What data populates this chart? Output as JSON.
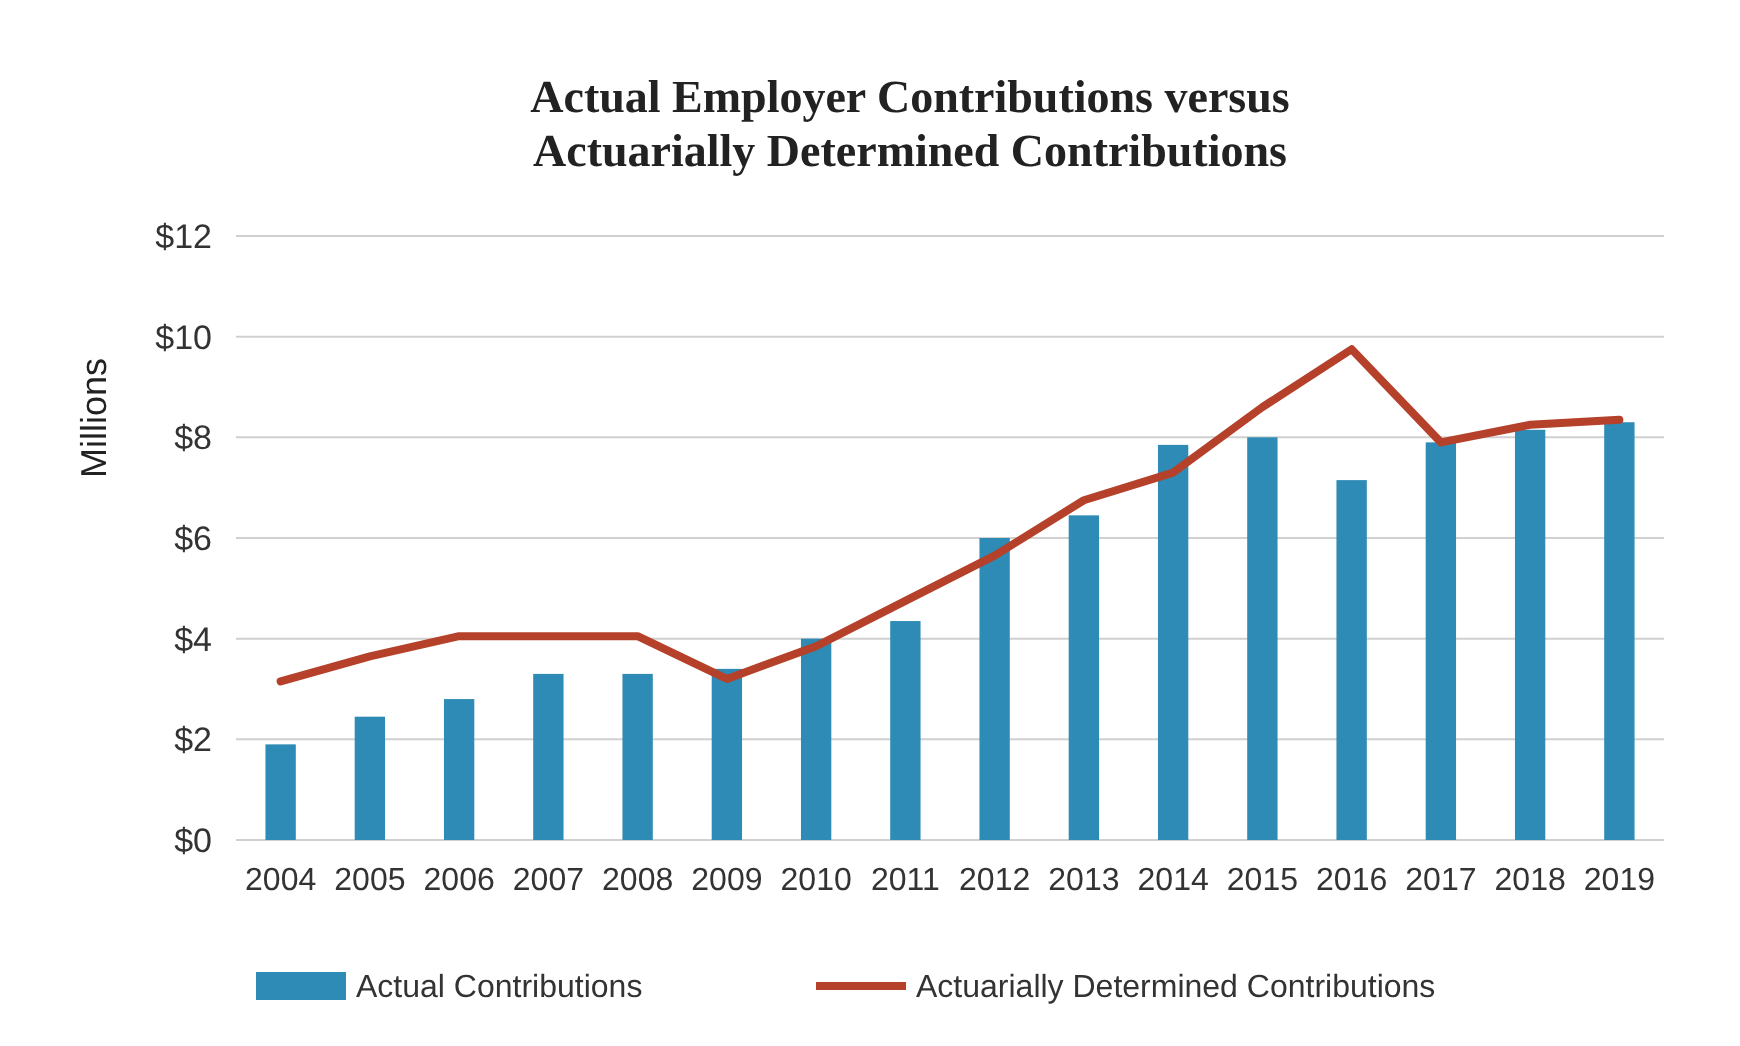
{
  "chart_data": {
    "type": "bar",
    "title": "Actual Employer Contributions versus\nActuarially Determined Contributions",
    "ylabel": "Millions",
    "categories": [
      "2004",
      "2005",
      "2006",
      "2007",
      "2008",
      "2009",
      "2010",
      "2011",
      "2012",
      "2013",
      "2014",
      "2015",
      "2016",
      "2017",
      "2018",
      "2019"
    ],
    "series": [
      {
        "name": "Actual Contributions",
        "color": "#2e8bb5",
        "values": [
          1.9,
          2.45,
          2.8,
          3.3,
          3.3,
          3.4,
          4.0,
          4.35,
          6.0,
          6.45,
          7.85,
          8.0,
          7.15,
          7.9,
          8.15,
          8.3
        ]
      },
      {
        "name": "Actuarially Determined Contributions",
        "type": "line",
        "color": "#b5412a",
        "values": [
          3.15,
          3.65,
          4.05,
          4.05,
          4.05,
          3.2,
          3.85,
          4.75,
          5.65,
          6.75,
          7.3,
          8.6,
          9.75,
          7.9,
          8.25,
          8.35
        ]
      }
    ],
    "ylim": [
      0,
      12
    ],
    "yticks": [
      {
        "value": 0,
        "label": "$0"
      },
      {
        "value": 2,
        "label": "$2"
      },
      {
        "value": 4,
        "label": "$4"
      },
      {
        "value": 6,
        "label": "$6"
      },
      {
        "value": 8,
        "label": "$8"
      },
      {
        "value": 10,
        "label": "$10"
      },
      {
        "value": 12,
        "label": "$12"
      }
    ],
    "grid": "y",
    "legend": "bottom"
  }
}
